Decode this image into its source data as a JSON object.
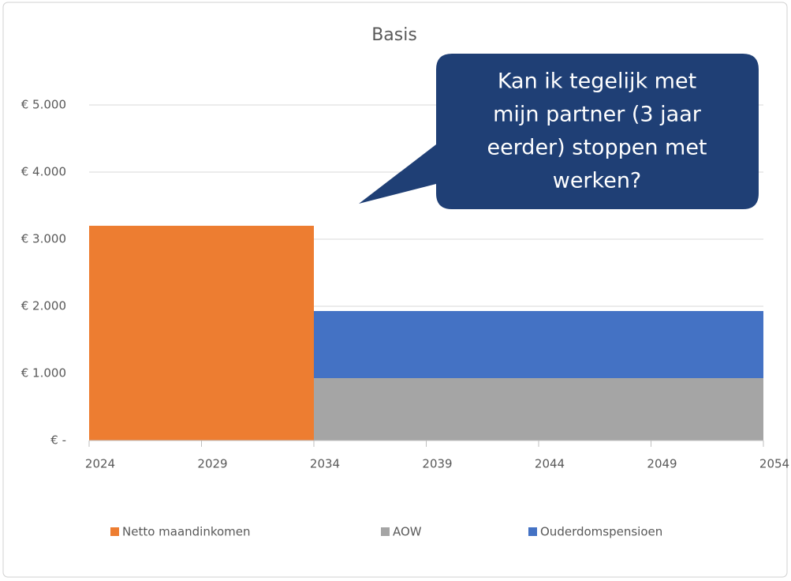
{
  "chart_data": {
    "type": "area",
    "stacked": true,
    "step": "post",
    "title": "Basis",
    "x": [
      2024,
      2034,
      2054
    ],
    "series": [
      {
        "name": "Netto maandinkomen",
        "color": "#ed7d31",
        "values": [
          3200,
          0,
          0
        ]
      },
      {
        "name": "AOW",
        "color": "#a5a5a5",
        "values": [
          0,
          930,
          930
        ]
      },
      {
        "name": "Ouderdomspensioen",
        "color": "#4472c4",
        "values": [
          0,
          1000,
          1000
        ]
      }
    ],
    "xlim": [
      2024,
      2054
    ],
    "xticks": [
      2024,
      2029,
      2034,
      2039,
      2044,
      2049,
      2054
    ],
    "ylim": [
      0,
      5000
    ],
    "yticks": [
      {
        "value": 0,
        "label": "€ -"
      },
      {
        "value": 1000,
        "label": "€ 1.000"
      },
      {
        "value": 2000,
        "label": "€ 2.000"
      },
      {
        "value": 3000,
        "label": "€ 3.000"
      },
      {
        "value": 4000,
        "label": "€ 4.000"
      },
      {
        "value": 5000,
        "label": "€ 5.000"
      }
    ],
    "grid": true,
    "legend": "bottom",
    "annotation": {
      "lines": [
        "Kan ik tegelijk met",
        "mijn partner (3 jaar",
        "eerder) stoppen met",
        "werken?"
      ],
      "color": "#1f3f75"
    }
  }
}
